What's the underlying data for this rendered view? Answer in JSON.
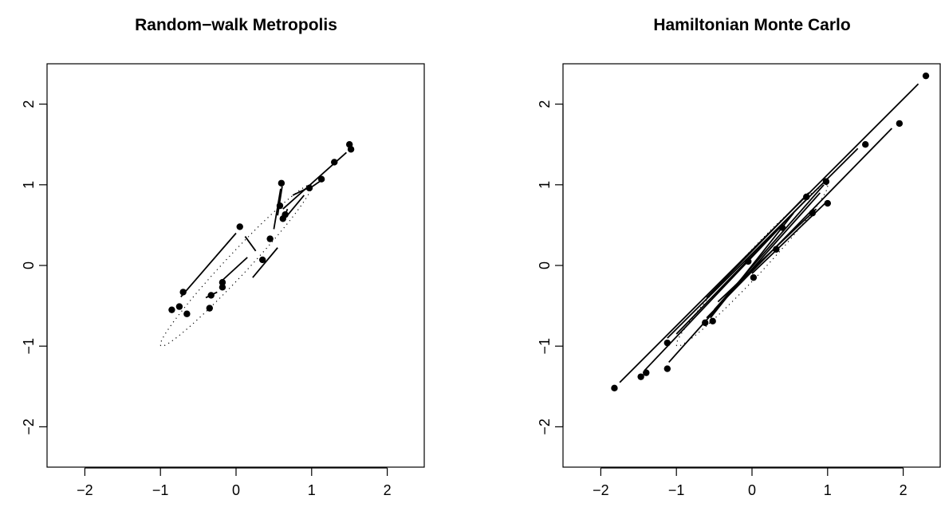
{
  "chart_data": [
    {
      "type": "scatter",
      "title": "Random−walk Metropolis",
      "xlim": [
        -2.5,
        2.5
      ],
      "ylim": [
        -2.5,
        2.5
      ],
      "xticks": [
        -2,
        -1,
        0,
        1,
        2
      ],
      "yticks": [
        -2,
        -1,
        0,
        1,
        2
      ],
      "xtick_labels": [
        "−2",
        "−1",
        "0",
        "1",
        "2"
      ],
      "ytick_labels": [
        "−2",
        "−1",
        "0",
        "1",
        "2"
      ],
      "grid": false,
      "contour": {
        "correlation": 0.98,
        "level_sd": 1.0
      },
      "points": [
        {
          "x": -0.85,
          "y": -0.55
        },
        {
          "x": -0.75,
          "y": -0.51
        },
        {
          "x": -0.7,
          "y": -0.33
        },
        {
          "x": -0.65,
          "y": -0.6
        },
        {
          "x": -0.35,
          "y": -0.53
        },
        {
          "x": -0.33,
          "y": -0.37
        },
        {
          "x": -0.18,
          "y": -0.27
        },
        {
          "x": -0.18,
          "y": -0.21
        },
        {
          "x": 0.05,
          "y": 0.48
        },
        {
          "x": 0.35,
          "y": 0.07
        },
        {
          "x": 0.45,
          "y": 0.33
        },
        {
          "x": 0.58,
          "y": 0.74
        },
        {
          "x": 0.6,
          "y": 1.02
        },
        {
          "x": 0.62,
          "y": 0.58
        },
        {
          "x": 0.65,
          "y": 0.63
        },
        {
          "x": 0.97,
          "y": 0.96
        },
        {
          "x": 1.13,
          "y": 1.07
        },
        {
          "x": 1.3,
          "y": 1.28
        },
        {
          "x": 1.5,
          "y": 1.5
        },
        {
          "x": 1.52,
          "y": 1.44
        }
      ],
      "segments": [
        {
          "x1": -0.73,
          "y1": -0.39,
          "x2": 0.0,
          "y2": 0.4
        },
        {
          "x1": 0.12,
          "y1": 0.36,
          "x2": 0.26,
          "y2": 0.18
        },
        {
          "x1": -0.2,
          "y1": -0.2,
          "x2": 0.15,
          "y2": 0.1
        },
        {
          "x1": 0.22,
          "y1": -0.15,
          "x2": 0.55,
          "y2": 0.22
        },
        {
          "x1": -0.4,
          "y1": -0.4,
          "x2": -0.25,
          "y2": -0.33
        },
        {
          "x1": 0.5,
          "y1": 0.45,
          "x2": 0.59,
          "y2": 0.95
        },
        {
          "x1": 0.55,
          "y1": 0.62,
          "x2": 0.61,
          "y2": 0.98
        },
        {
          "x1": 0.64,
          "y1": 0.6,
          "x2": 0.68,
          "y2": 0.7
        },
        {
          "x1": 0.66,
          "y1": 0.6,
          "x2": 0.9,
          "y2": 0.87
        },
        {
          "x1": 0.75,
          "y1": 0.87,
          "x2": 0.95,
          "y2": 0.96
        },
        {
          "x1": 0.98,
          "y1": 0.96,
          "x2": 1.12,
          "y2": 1.05
        },
        {
          "x1": 0.62,
          "y1": 0.7,
          "x2": 1.46,
          "y2": 1.4
        }
      ]
    },
    {
      "type": "scatter",
      "title": "Hamiltonian Monte Carlo",
      "xlim": [
        -2.5,
        2.5
      ],
      "ylim": [
        -2.5,
        2.5
      ],
      "xticks": [
        -2,
        -1,
        0,
        1,
        2
      ],
      "yticks": [
        -2,
        -1,
        0,
        1,
        2
      ],
      "xtick_labels": [
        "−2",
        "−1",
        "0",
        "1",
        "2"
      ],
      "ytick_labels": [
        "−2",
        "−1",
        "0",
        "1",
        "2"
      ],
      "grid": false,
      "contour": {
        "correlation": 0.98,
        "level_sd": 1.0
      },
      "points": [
        {
          "x": -1.82,
          "y": -1.52
        },
        {
          "x": -1.47,
          "y": -1.38
        },
        {
          "x": -1.4,
          "y": -1.33
        },
        {
          "x": -1.12,
          "y": -1.28
        },
        {
          "x": -1.12,
          "y": -0.96
        },
        {
          "x": -0.62,
          "y": -0.71
        },
        {
          "x": -0.52,
          "y": -0.69
        },
        {
          "x": -0.05,
          "y": 0.05
        },
        {
          "x": 0.02,
          "y": -0.15
        },
        {
          "x": 0.32,
          "y": 0.2
        },
        {
          "x": 0.4,
          "y": 0.47
        },
        {
          "x": 0.72,
          "y": 0.85
        },
        {
          "x": 0.8,
          "y": 0.65
        },
        {
          "x": 0.98,
          "y": 1.04
        },
        {
          "x": 1.0,
          "y": 0.77
        },
        {
          "x": 1.5,
          "y": 1.5
        },
        {
          "x": 1.95,
          "y": 1.76
        },
        {
          "x": 2.3,
          "y": 2.35
        }
      ],
      "segments": [
        {
          "x1": -1.75,
          "y1": -1.45,
          "x2": 2.2,
          "y2": 2.25
        },
        {
          "x1": -1.12,
          "y1": -0.9,
          "x2": 1.4,
          "y2": 1.45
        },
        {
          "x1": -1.42,
          "y1": -1.3,
          "x2": 0.4,
          "y2": 0.5
        },
        {
          "x1": -1.1,
          "y1": -1.2,
          "x2": 0.9,
          "y2": 0.9
        },
        {
          "x1": -0.6,
          "y1": -0.65,
          "x2": 1.85,
          "y2": 1.7
        },
        {
          "x1": -0.5,
          "y1": -0.55,
          "x2": 0.95,
          "y2": 1.0
        },
        {
          "x1": -1.0,
          "y1": -0.85,
          "x2": 0.7,
          "y2": 0.8
        },
        {
          "x1": 0.0,
          "y1": -0.1,
          "x2": 1.0,
          "y2": 0.8
        },
        {
          "x1": -0.55,
          "y1": -0.65,
          "x2": 0.55,
          "y2": 0.65
        },
        {
          "x1": -0.45,
          "y1": -0.45,
          "x2": 0.85,
          "y2": 0.7
        },
        {
          "x1": -0.6,
          "y1": -0.4,
          "x2": 0.75,
          "y2": 0.9
        }
      ]
    }
  ]
}
